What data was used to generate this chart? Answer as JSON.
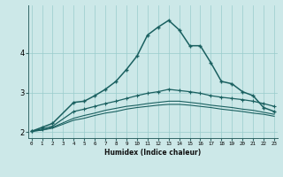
{
  "xlabel": "Humidex (Indice chaleur)",
  "bg_color": "#cce8e8",
  "grid_color": "#99cccc",
  "line_color": "#1a6060",
  "x": [
    0,
    1,
    2,
    4,
    5,
    6,
    7,
    8,
    9,
    10,
    11,
    12,
    13,
    14,
    15,
    16,
    17,
    18,
    19,
    20,
    21,
    22,
    23
  ],
  "line1": [
    2.02,
    2.12,
    2.22,
    2.75,
    2.78,
    2.92,
    3.08,
    3.28,
    3.58,
    3.92,
    4.45,
    4.65,
    4.82,
    4.58,
    4.18,
    4.18,
    3.75,
    3.28,
    3.22,
    3.02,
    2.92,
    2.62,
    2.52
  ],
  "line2": [
    2.02,
    2.08,
    2.15,
    2.52,
    2.58,
    2.65,
    2.72,
    2.78,
    2.85,
    2.92,
    2.98,
    3.02,
    3.08,
    3.05,
    3.02,
    2.98,
    2.92,
    2.88,
    2.85,
    2.82,
    2.78,
    2.72,
    2.65
  ],
  "line3": [
    2.02,
    2.05,
    2.12,
    2.35,
    2.42,
    2.48,
    2.55,
    2.6,
    2.65,
    2.68,
    2.72,
    2.75,
    2.78,
    2.78,
    2.75,
    2.72,
    2.68,
    2.65,
    2.62,
    2.58,
    2.55,
    2.5,
    2.45
  ],
  "line4": [
    2.02,
    2.05,
    2.1,
    2.3,
    2.35,
    2.42,
    2.48,
    2.52,
    2.58,
    2.62,
    2.65,
    2.68,
    2.7,
    2.7,
    2.68,
    2.65,
    2.62,
    2.58,
    2.55,
    2.52,
    2.48,
    2.45,
    2.4
  ],
  "xlim": [
    -0.3,
    23.3
  ],
  "ylim": [
    1.85,
    5.2
  ],
  "yticks": [
    2,
    3,
    4
  ],
  "xticks": [
    0,
    1,
    2,
    3,
    4,
    5,
    6,
    7,
    8,
    9,
    10,
    11,
    12,
    13,
    14,
    15,
    16,
    17,
    18,
    19,
    20,
    21,
    22,
    23
  ]
}
